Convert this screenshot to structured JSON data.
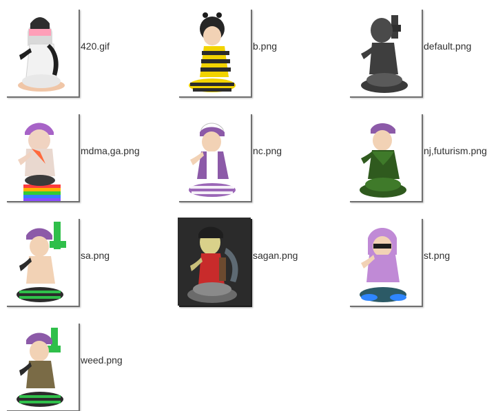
{
  "files": [
    {
      "name": "420.gif"
    },
    {
      "name": "b.png"
    },
    {
      "name": "default.png"
    },
    {
      "name": "mdma,ga.png"
    },
    {
      "name": "nc.png"
    },
    {
      "name": "nj,futurism.png"
    },
    {
      "name": "sa.png"
    },
    {
      "name": "sagan.png"
    },
    {
      "name": "st.png"
    },
    {
      "name": "weed.png"
    }
  ]
}
